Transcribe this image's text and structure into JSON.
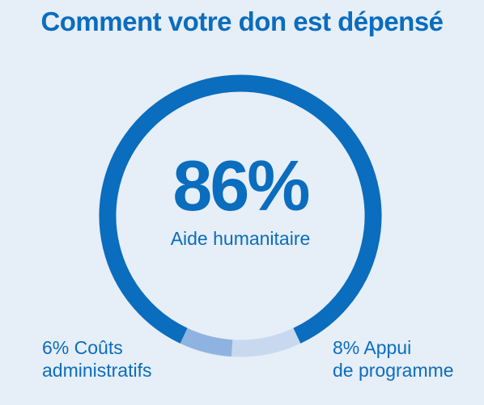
{
  "colors": {
    "background": "#e6eef7",
    "primary": "#0a6dbe",
    "admin": "#8fb3e1",
    "programme": "#c8d9ef"
  },
  "title": "Comment votre don est dépensé",
  "chart_data": {
    "type": "pie",
    "donut": true,
    "title": "Comment votre don est dépensé",
    "slices": [
      {
        "label": "Aide humanitaire",
        "value": 86,
        "display": "86%"
      },
      {
        "label": "Appui de programme",
        "value": 8,
        "display": "8% Appui de programme"
      },
      {
        "label": "Coûts administratifs",
        "value": 6,
        "display": "6% Coûts administratifs"
      }
    ]
  },
  "center": {
    "value": "86%",
    "label": "Aide humanitaire"
  },
  "labels": {
    "admin_line1": "6% Coûts",
    "admin_line2": "administratifs",
    "programme_line1": "8% Appui",
    "programme_line2": "de programme"
  }
}
